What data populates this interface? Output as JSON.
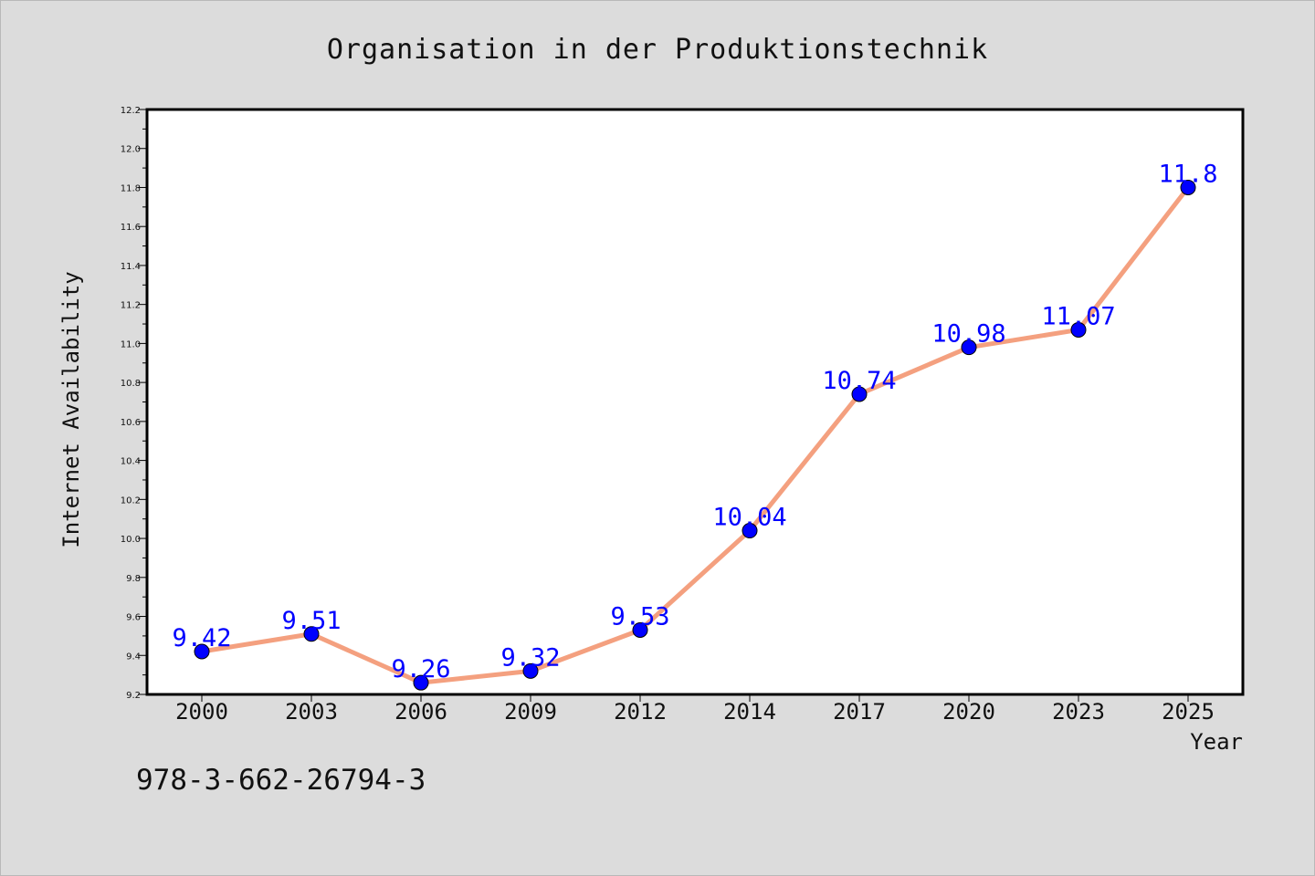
{
  "chart_data": {
    "type": "line",
    "title": "Organisation in der Produktionstechnik",
    "xlabel": "Year",
    "ylabel": "Internet Availability",
    "categories": [
      "2000",
      "2003",
      "2006",
      "2009",
      "2012",
      "2014",
      "2017",
      "2020",
      "2023",
      "2025"
    ],
    "series": [
      {
        "values": [
          9.42,
          9.51,
          9.26,
          9.32,
          9.53,
          10.04,
          10.74,
          10.98,
          11.07,
          11.8
        ],
        "data_labels": [
          "9.42",
          "9.51",
          "9.26",
          "9.32",
          "9.53",
          "10.04",
          "10.74",
          "10.98",
          "11.07",
          "11.8"
        ]
      }
    ],
    "ylim": [
      9.2,
      12.2
    ],
    "yticks": [
      "9.2",
      "9.4",
      "9.6",
      "9.8",
      "10.0",
      "10.2",
      "10.4",
      "10.6",
      "10.8",
      "11.0",
      "11.2",
      "11.4",
      "11.6",
      "11.8",
      "12.0",
      "12.2"
    ],
    "grid": false,
    "legend": "none",
    "colors": {
      "background": "#dcdcdc",
      "plot_background": "#ffffff",
      "line": "#f4a07f",
      "marker": "#0000ff",
      "data_label": "#0000ff"
    }
  },
  "annotation": {
    "isbn": "978-3-662-26794-3"
  }
}
